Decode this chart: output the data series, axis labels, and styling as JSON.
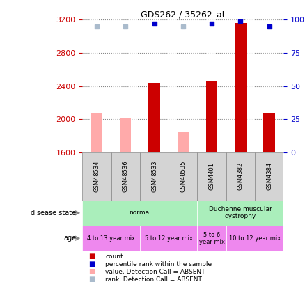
{
  "title": "GDS262 / 35262_at",
  "samples": [
    "GSM48534",
    "GSM48536",
    "GSM48533",
    "GSM48535",
    "GSM4401",
    "GSM4382",
    "GSM4384"
  ],
  "bar_values": [
    2075,
    2010,
    2440,
    1840,
    2460,
    3165,
    2070
  ],
  "bar_absent": [
    true,
    true,
    false,
    true,
    false,
    false,
    false
  ],
  "percentile_values": [
    95,
    95,
    97,
    95,
    97,
    99,
    95
  ],
  "percentile_absent": [
    true,
    true,
    false,
    true,
    false,
    false,
    false
  ],
  "ylim_left": [
    1600,
    3200
  ],
  "ylim_right": [
    0,
    100
  ],
  "yticks_left": [
    1600,
    2000,
    2400,
    2800,
    3200
  ],
  "yticks_right": [
    0,
    25,
    50,
    75,
    100
  ],
  "left_color": "#cc0000",
  "right_color": "#0000cc",
  "bar_present_color": "#cc0000",
  "bar_absent_color": "#ffaaaa",
  "dot_present_color": "#0000cc",
  "dot_absent_color": "#aabbcc",
  "sample_bg_color": "#d4d4d4",
  "sample_border_color": "#888888",
  "disease_normal_color": "#aaeebb",
  "disease_dmd_color": "#aaeebb",
  "age_color": "#ee88ee",
  "disease_info": [
    {
      "label": "normal",
      "start": 0,
      "end": 4
    },
    {
      "label": "Duchenne muscular\ndystrophy",
      "start": 4,
      "end": 7
    }
  ],
  "age_info": [
    {
      "label": "4 to 13 year mix",
      "start": 0,
      "end": 2
    },
    {
      "label": "5 to 12 year mix",
      "start": 2,
      "end": 4
    },
    {
      "label": "5 to 6\nyear mix",
      "start": 4,
      "end": 5
    },
    {
      "label": "10 to 12 year mix",
      "start": 5,
      "end": 7
    }
  ],
  "legend_items": [
    {
      "color": "#cc0000",
      "label": "count"
    },
    {
      "color": "#0000cc",
      "label": "percentile rank within the sample"
    },
    {
      "color": "#ffaaaa",
      "label": "value, Detection Call = ABSENT"
    },
    {
      "color": "#aabbcc",
      "label": "rank, Detection Call = ABSENT"
    }
  ],
  "figsize": [
    4.38,
    4.05
  ],
  "dpi": 100
}
